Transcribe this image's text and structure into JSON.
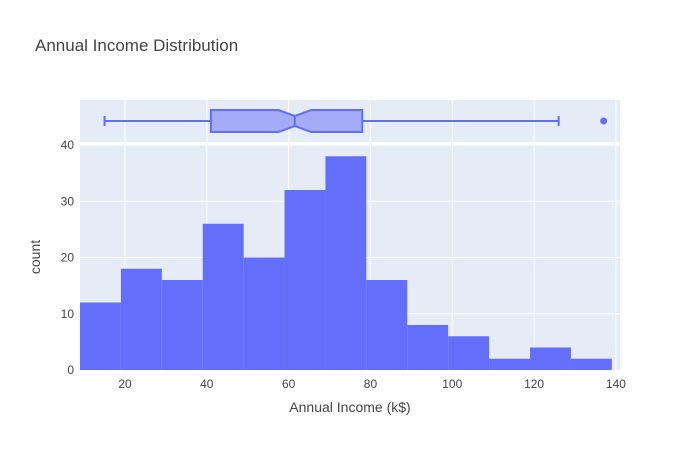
{
  "chart_data": {
    "type": "histogram",
    "title": "Annual Income Distribution",
    "xlabel": "Annual Income (k$)",
    "ylabel": "count",
    "xlim": [
      9,
      141
    ],
    "ylim": [
      0,
      40
    ],
    "bin_width": 10,
    "bins": [
      {
        "start": 9,
        "end": 19,
        "count": 12
      },
      {
        "start": 19,
        "end": 29,
        "count": 18
      },
      {
        "start": 29,
        "end": 39,
        "count": 16
      },
      {
        "start": 39,
        "end": 49,
        "count": 26
      },
      {
        "start": 49,
        "end": 59,
        "count": 20
      },
      {
        "start": 59,
        "end": 69,
        "count": 32
      },
      {
        "start": 69,
        "end": 79,
        "count": 38
      },
      {
        "start": 79,
        "end": 89,
        "count": 16
      },
      {
        "start": 89,
        "end": 99,
        "count": 8
      },
      {
        "start": 99,
        "end": 109,
        "count": 6
      },
      {
        "start": 109,
        "end": 119,
        "count": 2
      },
      {
        "start": 119,
        "end": 129,
        "count": 4
      },
      {
        "start": 129,
        "end": 139,
        "count": 2
      }
    ],
    "x_ticks": [
      20,
      40,
      60,
      80,
      100,
      120,
      140
    ],
    "y_ticks": [
      0,
      10,
      20,
      30,
      40
    ],
    "x_tick_labels": [
      "20",
      "40",
      "60",
      "80",
      "100",
      "120",
      "140"
    ],
    "y_tick_labels": [
      "0",
      "10",
      "20",
      "30",
      "40"
    ],
    "marginal_box": {
      "min": 15,
      "q1": 41,
      "median": 61.5,
      "q3": 78,
      "max": 126,
      "notch_low": 57.5,
      "notch_high": 65.5,
      "outliers": [
        137
      ]
    },
    "colors": {
      "bar": "#636efa",
      "box_fill": "#a5abf6",
      "box_line": "#636efa",
      "plot_bg": "#e5ecf6",
      "grid": "#ffffff",
      "text": "#444444",
      "title": "#444444"
    },
    "grid": true,
    "legend": false
  }
}
